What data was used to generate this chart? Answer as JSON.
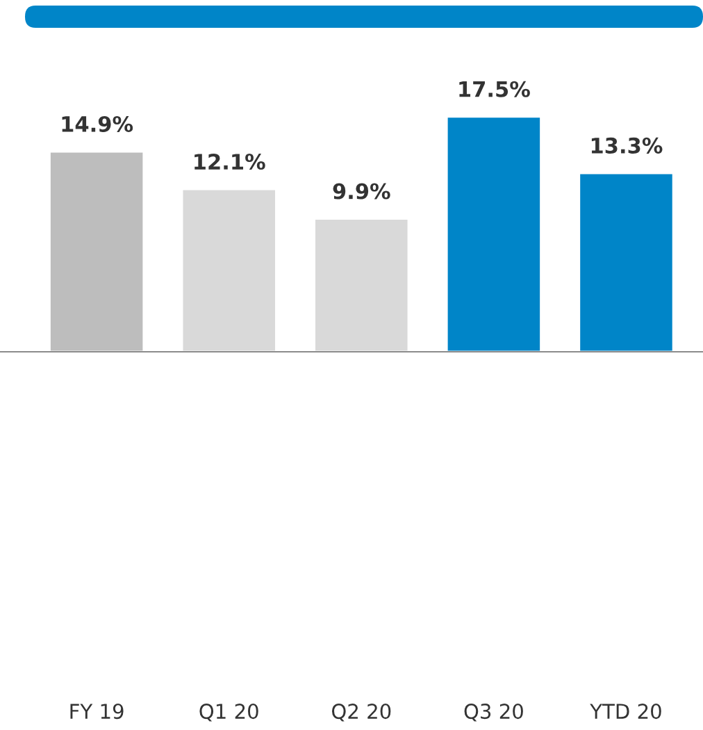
{
  "chart_data": {
    "type": "bar",
    "categories": [
      "FY 19",
      "Q1 20",
      "Q2 20",
      "Q3 20",
      "YTD 20"
    ],
    "values": [
      14.9,
      12.1,
      9.9,
      17.5,
      13.3
    ],
    "value_labels": [
      "14.9%",
      "12.1%",
      "9.9%",
      "17.5%",
      "13.3%"
    ],
    "colors": [
      "#bdbdbd",
      "#d9d9d9",
      "#d9d9d9",
      "#0085c8",
      "#0085c8"
    ],
    "grid": false,
    "legend": false
  }
}
